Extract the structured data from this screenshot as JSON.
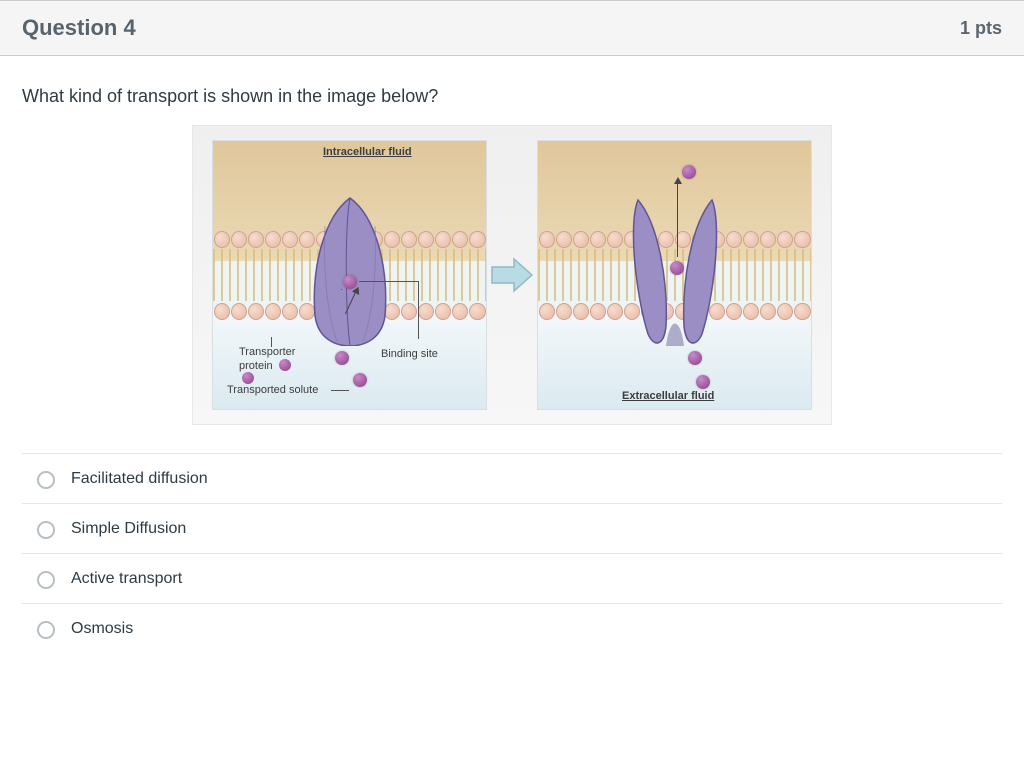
{
  "header": {
    "title": "Question 4",
    "points": "1 pts"
  },
  "question": {
    "prompt": "What kind of transport is shown in the image below?"
  },
  "figure": {
    "type": "infographic",
    "background_color": "#efefef",
    "panel_bg": "#eef4f6",
    "membrane_head_color": "#e7b8a5",
    "membrane_tail_color": "#d9c07a",
    "protein_fill": "#9a8ec4",
    "protein_shadow": "#6f639d",
    "solute_color": "#8a3e88",
    "arrow_color": "#9dc9d6",
    "labels": {
      "intracellular": "Intracellular fluid",
      "transporter": "Transporter\nprotein",
      "binding_site": "Binding site",
      "transported_solute": "Transported solute",
      "extracellular": "Extracellular fluid"
    }
  },
  "answers": [
    {
      "id": "a1",
      "text": "Facilitated diffusion"
    },
    {
      "id": "a2",
      "text": "Simple Diffusion"
    },
    {
      "id": "a3",
      "text": "Active transport"
    },
    {
      "id": "a4",
      "text": "Osmosis"
    }
  ]
}
